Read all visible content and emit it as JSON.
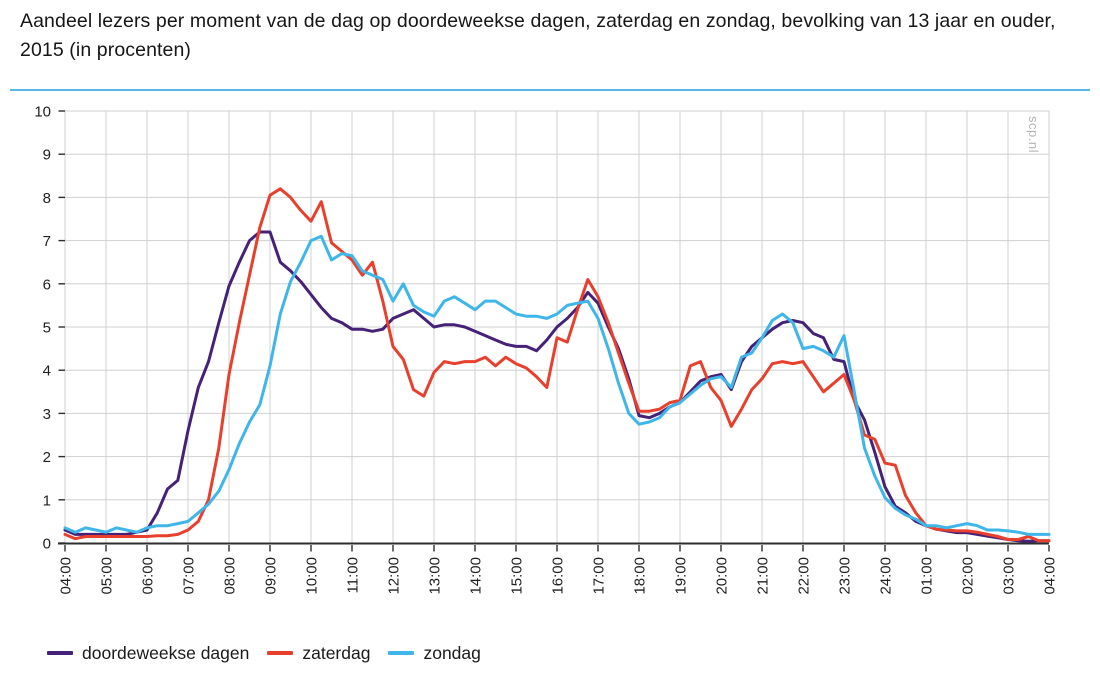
{
  "header": {
    "title": "Aandeel lezers per moment van de dag op doordeweekse dagen, zaterdag en zondag, bevolking van 13 jaar en ouder, 2015 (in procenten)",
    "rule_color": "#56b9e8"
  },
  "watermark": "scp.nl",
  "chart_data": {
    "type": "line",
    "title": "Aandeel lezers per moment van de dag op doordeweekse dagen, zaterdag en zondag, bevolking van 13 jaar en ouder, 2015 (in procenten)",
    "xlabel": "",
    "ylabel": "",
    "ylim": [
      0,
      10
    ],
    "y_ticks": [
      0,
      1,
      2,
      3,
      4,
      5,
      6,
      7,
      8,
      9,
      10
    ],
    "grid": true,
    "legend_position": "bottom",
    "points_per_hour": 4,
    "x_tick_labels": [
      "04:00",
      "05:00",
      "06:00",
      "07:00",
      "08:00",
      "09:00",
      "10:00",
      "11:00",
      "12:00",
      "13:00",
      "14:00",
      "15:00",
      "16:00",
      "17:00",
      "18:00",
      "19:00",
      "20:00",
      "21:00",
      "22:00",
      "23:00",
      "24:00",
      "01:00",
      "02:00",
      "03:00",
      "04:00"
    ],
    "axis_color": "#2e2e2e",
    "grid_color": "#cfd0d1",
    "tick_label_color": "#1f1f1f",
    "series": [
      {
        "name": "doordeweekse dagen",
        "color": "#462178",
        "values": [
          0.3,
          0.2,
          0.2,
          0.2,
          0.2,
          0.2,
          0.2,
          0.25,
          0.3,
          0.7,
          1.25,
          1.45,
          2.6,
          3.6,
          4.2,
          5.1,
          5.95,
          6.5,
          7.0,
          7.2,
          7.2,
          6.5,
          6.3,
          6.05,
          5.75,
          5.45,
          5.2,
          5.1,
          4.95,
          4.95,
          4.9,
          4.95,
          5.2,
          5.3,
          5.4,
          5.2,
          5.0,
          5.05,
          5.05,
          5.0,
          4.9,
          4.8,
          4.7,
          4.6,
          4.55,
          4.55,
          4.45,
          4.7,
          5.0,
          5.2,
          5.45,
          5.8,
          5.55,
          5.0,
          4.5,
          3.8,
          2.95,
          2.9,
          3.0,
          3.15,
          3.25,
          3.5,
          3.75,
          3.85,
          3.9,
          3.55,
          4.2,
          4.55,
          4.75,
          4.95,
          5.1,
          5.15,
          5.1,
          4.85,
          4.75,
          4.25,
          4.2,
          3.3,
          2.85,
          2.1,
          1.3,
          0.85,
          0.7,
          0.5,
          0.4,
          0.32,
          0.28,
          0.24,
          0.24,
          0.2,
          0.16,
          0.12,
          0.08,
          0.05,
          0.04,
          0.05,
          0.05
        ]
      },
      {
        "name": "zaterdag",
        "color": "#e9402e",
        "values": [
          0.2,
          0.1,
          0.15,
          0.15,
          0.15,
          0.15,
          0.15,
          0.15,
          0.15,
          0.17,
          0.17,
          0.2,
          0.3,
          0.5,
          1.0,
          2.2,
          3.9,
          5.1,
          6.2,
          7.3,
          8.05,
          8.2,
          8.0,
          7.7,
          7.45,
          7.9,
          6.95,
          6.75,
          6.55,
          6.2,
          6.5,
          5.6,
          4.55,
          4.25,
          3.55,
          3.4,
          3.95,
          4.2,
          4.15,
          4.2,
          4.2,
          4.3,
          4.1,
          4.3,
          4.15,
          4.05,
          3.85,
          3.6,
          4.75,
          4.65,
          5.4,
          6.1,
          5.7,
          5.1,
          4.4,
          3.7,
          3.05,
          3.05,
          3.1,
          3.25,
          3.3,
          4.1,
          4.2,
          3.6,
          3.3,
          2.7,
          3.1,
          3.55,
          3.8,
          4.15,
          4.2,
          4.15,
          4.2,
          3.85,
          3.5,
          3.7,
          3.9,
          3.3,
          2.5,
          2.4,
          1.85,
          1.8,
          1.1,
          0.7,
          0.4,
          0.32,
          0.3,
          0.28,
          0.28,
          0.25,
          0.2,
          0.15,
          0.08,
          0.08,
          0.15,
          0.05,
          0.05
        ]
      },
      {
        "name": "zondag",
        "color": "#3fb6e9",
        "values": [
          0.35,
          0.25,
          0.35,
          0.3,
          0.25,
          0.35,
          0.3,
          0.25,
          0.35,
          0.4,
          0.4,
          0.45,
          0.5,
          0.7,
          0.9,
          1.2,
          1.7,
          2.3,
          2.8,
          3.2,
          4.1,
          5.3,
          6.05,
          6.5,
          7.0,
          7.1,
          6.55,
          6.7,
          6.65,
          6.3,
          6.2,
          6.1,
          5.6,
          6.0,
          5.5,
          5.35,
          5.25,
          5.6,
          5.7,
          5.55,
          5.4,
          5.6,
          5.6,
          5.45,
          5.3,
          5.25,
          5.25,
          5.2,
          5.3,
          5.5,
          5.55,
          5.6,
          5.2,
          4.5,
          3.7,
          3.0,
          2.75,
          2.8,
          2.9,
          3.15,
          3.25,
          3.45,
          3.65,
          3.8,
          3.85,
          3.6,
          4.3,
          4.4,
          4.75,
          5.15,
          5.3,
          5.1,
          4.5,
          4.55,
          4.45,
          4.3,
          4.8,
          3.5,
          2.2,
          1.55,
          1.05,
          0.8,
          0.65,
          0.55,
          0.4,
          0.4,
          0.35,
          0.4,
          0.45,
          0.4,
          0.3,
          0.3,
          0.28,
          0.25,
          0.2,
          0.2,
          0.2
        ]
      }
    ]
  }
}
